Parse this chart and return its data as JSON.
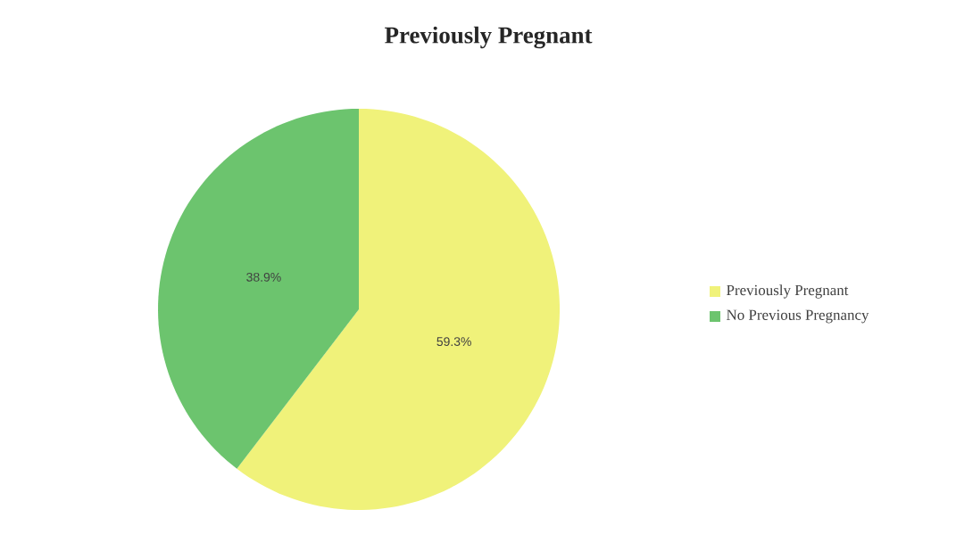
{
  "chart_data": {
    "type": "pie",
    "title": "Previously Pregnant",
    "categories": [
      "Previously Pregnant",
      "No Previous Pregnancy"
    ],
    "values": [
      59.3,
      38.9
    ],
    "value_labels": [
      "59.3%",
      "38.9%"
    ],
    "colors": [
      "#f0f27a",
      "#6cc46e"
    ],
    "legend": "right"
  }
}
